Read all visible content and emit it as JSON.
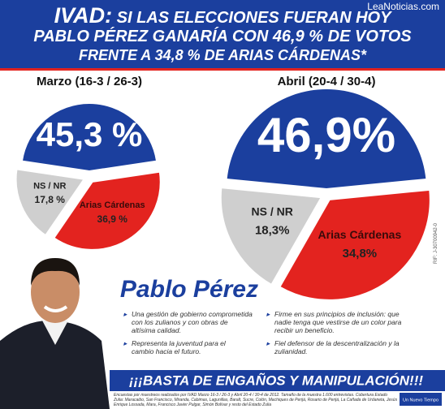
{
  "watermark": "LeaNoticias.com",
  "header": {
    "brand": "IVAD:",
    "lines": [
      "SI LAS ELECCIONES FUERAN HOY",
      "PABLO PÉREZ GANARÍA CON 46,9 % DE VOTOS",
      "FRENTE A 34,8 % DE ARIAS CÁRDENAS*"
    ]
  },
  "chart_data": [
    {
      "type": "pie",
      "title": "Marzo (16-3 / 26-3)",
      "categories": [
        null,
        "Arias Cárdenas",
        "NS / NR"
      ],
      "values": [
        45.3,
        36.9,
        17.8
      ],
      "value_labels": [
        "45,3 %",
        "36,9 %",
        "17,8 %"
      ],
      "colors": [
        "#1b3f9e",
        "#e3231f",
        "#cfcfcf"
      ]
    },
    {
      "type": "pie",
      "title": "Abril (20-4 / 30-4)",
      "categories": [
        null,
        "Arias Cárdenas",
        "NS / NR"
      ],
      "values": [
        46.9,
        34.8,
        18.3
      ],
      "value_labels": [
        "46,9%",
        "34,8%",
        "18,3%"
      ],
      "colors": [
        "#1b3f9e",
        "#e3231f",
        "#cfcfcf"
      ]
    }
  ],
  "candidate": "Pablo Pérez",
  "bullets": [
    "Una gestión de gobierno comprometida con los zulianos y con obras de altísima calidad.",
    "Representa la juventud para el cambio hacia el futuro.",
    "Firme en sus principios de inclusión: que nadie tenga que vestirse de un color para recibir un beneficio.",
    "Fiel defensor de la descentralización y la zulianidad."
  ],
  "side_note": "RIF: J-30700942-0",
  "banner": "¡¡¡BASTA DE ENGAÑOS Y MANIPULACIÓN!!!",
  "footnote": "Encuestas por muestreos realizados por IVAD Marzo 16-3 / 26-3 y Abril 20-4 / 30-4 de 2012. Tamaño de la muestra 1.600 entrevistas. Cobertura Estado Zulia: Maracaibo, San Francisco, Miranda, Cabimas, Lagunillas, Baralt, Sucre, Colón, Machiques de Perijá, Rosario de Perijá, La Cañada de Urdaneta, Jesús Enrique Lossada, Mara, Francisco Javier Pulgar, Simón Bolívar y resto del Estado Zulia",
  "logo": "Un Nuevo Tiempo"
}
